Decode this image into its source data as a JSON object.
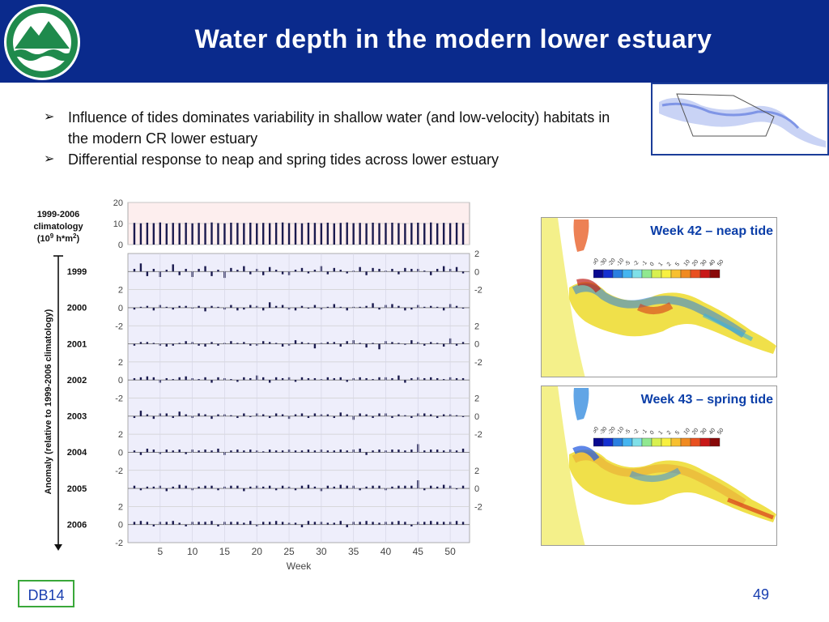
{
  "slide": {
    "title": "Water depth in the modern lower estuary",
    "bullets": [
      "Influence of tides dominates variability in shallow water (and low-velocity) habitats in the modern CR lower estuary",
      "Differential response to neap and spring tides across lower estuary"
    ],
    "footer_tag": "DB14",
    "page_number": "49"
  },
  "colors": {
    "header": "#0a2a8c",
    "bars": "#1a1a4e",
    "panel_bg": "#eeeefb",
    "clim_bg": "#fdeeee",
    "title_text": "#0b3ea8"
  },
  "maps": [
    {
      "label": "Week 42 – neap tide"
    },
    {
      "label": "Week 43 – spring tide"
    }
  ],
  "chart_data": {
    "type": "bar",
    "x": [
      1,
      2,
      3,
      4,
      5,
      6,
      7,
      8,
      9,
      10,
      11,
      12,
      13,
      14,
      15,
      16,
      17,
      18,
      19,
      20,
      21,
      22,
      23,
      24,
      25,
      26,
      27,
      28,
      29,
      30,
      31,
      32,
      33,
      34,
      35,
      36,
      37,
      38,
      39,
      40,
      41,
      42,
      43,
      44,
      45,
      46,
      47,
      48,
      49,
      50,
      51,
      52
    ],
    "xlabel": "Week",
    "xticks": [
      5,
      10,
      15,
      20,
      25,
      30,
      35,
      40,
      45,
      50
    ],
    "xlim": [
      0,
      53
    ],
    "ylabel": "Anomaly (relative to 1999-2006 climatology)",
    "climatology": {
      "label_lines": [
        "1999-2006",
        "climatology"
      ],
      "unit_base": "(10",
      "unit_exp1": "9",
      "unit_mid": " h*m",
      "unit_exp2": "2",
      "unit_end": ")",
      "ylim": [
        0,
        20
      ],
      "yticks": [
        0,
        10,
        20
      ],
      "values": [
        10.3,
        10.1,
        10.4,
        10.2,
        10.5,
        10.0,
        10.3,
        10.2,
        10.4,
        10.1,
        10.3,
        10.2,
        10.5,
        10.2,
        10.1,
        10.4,
        10.3,
        10.2,
        10.4,
        10.1,
        10.3,
        10.2,
        10.4,
        10.5,
        10.2,
        10.3,
        10.1,
        10.4,
        10.3,
        10.2,
        10.4,
        10.1,
        10.3,
        10.5,
        10.2,
        10.3,
        10.1,
        10.4,
        10.2,
        10.3,
        10.4,
        10.2,
        10.1,
        10.3,
        10.4,
        10.2,
        10.5,
        10.1,
        10.3,
        10.2,
        10.4,
        10.2
      ]
    },
    "anomaly_ylim": [
      -2,
      2
    ],
    "anomaly_yticks": [
      -2,
      0,
      2
    ],
    "series": [
      {
        "name": "1999",
        "values": [
          0.3,
          0.9,
          -0.5,
          0.3,
          -0.6,
          0.2,
          0.8,
          -0.4,
          0.3,
          -0.6,
          0.3,
          0.6,
          -0.5,
          0.2,
          -0.7,
          0.4,
          0.2,
          0.6,
          -0.3,
          0.3,
          -0.4,
          0.5,
          0.2,
          -0.3,
          -0.4,
          0.2,
          0.4,
          -0.2,
          0.2,
          0.6,
          -0.3,
          0.4,
          0.2,
          -0.2,
          0.1,
          0.5,
          -0.4,
          0.4,
          0.3,
          0.1,
          0.3,
          -0.3,
          0.4,
          0.3,
          0.3,
          0.1,
          -0.4,
          0.3,
          0.6,
          0.3,
          0.5,
          -0.2
        ]
      },
      {
        "name": "2000",
        "values": [
          -0.2,
          0.1,
          0.2,
          -0.3,
          0.3,
          0.1,
          -0.2,
          0.2,
          0.2,
          -0.1,
          0.2,
          -0.4,
          0.2,
          0.1,
          -0.2,
          0.3,
          -0.3,
          -0.2,
          0.3,
          0.2,
          -0.3,
          0.6,
          0.2,
          0.3,
          -0.2,
          -0.3,
          0.2,
          -0.1,
          0.3,
          -0.2,
          0.1,
          0.4,
          0.1,
          -0.3,
          0.1,
          0.1,
          0.2,
          0.5,
          -0.2,
          0.3,
          0.4,
          0.2,
          -0.3,
          -0.2,
          0.3,
          0.1,
          0.2,
          0.1,
          -0.3,
          0.4,
          0.2,
          -0.1
        ]
      },
      {
        "name": "2001",
        "values": [
          -0.2,
          0.2,
          0.2,
          0.1,
          -0.2,
          -0.3,
          -0.2,
          0.1,
          0.3,
          0.2,
          -0.2,
          -0.3,
          0.2,
          -0.2,
          0.1,
          0.3,
          0.1,
          0.2,
          -0.2,
          -0.2,
          0.3,
          0.2,
          0.1,
          -0.3,
          -0.2,
          0.4,
          0.2,
          0.1,
          -0.5,
          0.1,
          0.2,
          0.2,
          -0.3,
          0.3,
          0.4,
          0.1,
          -0.4,
          0.1,
          -0.6,
          0.3,
          0.2,
          0.1,
          -0.1,
          0.4,
          0.2,
          -0.2,
          0.2,
          0.1,
          -0.3,
          0.6,
          -0.2,
          0.2
        ]
      },
      {
        "name": "2002",
        "values": [
          0.2,
          0.3,
          0.4,
          0.3,
          -0.3,
          0.2,
          0.1,
          0.3,
          0.4,
          0.2,
          0.1,
          0.3,
          -0.3,
          0.3,
          0.2,
          0.1,
          -0.2,
          0.3,
          0.2,
          0.5,
          0.3,
          -0.3,
          0.3,
          0.2,
          0.3,
          -0.2,
          0.3,
          0.2,
          0.2,
          0.1,
          0.3,
          0.2,
          0.3,
          -0.2,
          0.2,
          0.3,
          0.2,
          0.1,
          0.3,
          0.3,
          0.2,
          0.5,
          -0.3,
          0.2,
          0.3,
          0.2,
          0.3,
          0.2,
          0.1,
          0.3,
          0.2,
          0.2
        ]
      },
      {
        "name": "2003",
        "values": [
          -0.2,
          0.6,
          0.2,
          -0.3,
          0.3,
          0.3,
          -0.2,
          0.5,
          0.2,
          -0.2,
          0.3,
          0.2,
          -0.3,
          0.2,
          0.2,
          0.1,
          -0.2,
          0.3,
          -0.1,
          0.3,
          0.2,
          -0.2,
          0.3,
          0.2,
          -0.3,
          0.2,
          0.3,
          -0.2,
          0.3,
          0.2,
          0.2,
          -0.2,
          0.4,
          0.2,
          -0.4,
          0.3,
          0.2,
          -0.2,
          0.3,
          0.3,
          -0.2,
          0.2,
          0.1,
          -0.2,
          0.3,
          0.3,
          0.2,
          -0.2,
          0.2,
          0.2,
          0.1,
          -0.1
        ]
      },
      {
        "name": "2004",
        "values": [
          0.2,
          -0.3,
          0.4,
          0.3,
          -0.2,
          0.3,
          0.2,
          0.3,
          -0.2,
          0.3,
          0.2,
          0.3,
          0.2,
          0.4,
          -0.3,
          0.2,
          0.3,
          0.2,
          0.3,
          0.2,
          0.1,
          0.3,
          0.2,
          0.2,
          0.3,
          0.2,
          0.2,
          0.3,
          0.2,
          0.3,
          0.2,
          0.2,
          0.3,
          0.2,
          0.3,
          0.4,
          -0.3,
          0.2,
          0.3,
          0.2,
          0.3,
          0.3,
          0.2,
          0.3,
          0.9,
          0.2,
          0.3,
          0.3,
          0.2,
          0.3,
          0.2,
          0.4
        ]
      },
      {
        "name": "2005",
        "values": [
          0.3,
          -0.2,
          0.2,
          0.2,
          0.3,
          -0.3,
          0.2,
          0.4,
          0.3,
          -0.2,
          0.2,
          0.3,
          0.3,
          -0.2,
          0.2,
          0.3,
          0.3,
          -0.3,
          0.2,
          0.3,
          0.2,
          0.3,
          -0.2,
          0.3,
          0.2,
          -0.2,
          0.3,
          0.4,
          0.2,
          -0.3,
          0.3,
          0.2,
          0.4,
          0.3,
          0.3,
          -0.2,
          0.2,
          0.3,
          0.3,
          -0.2,
          0.2,
          0.3,
          0.3,
          0.3,
          0.9,
          -0.2,
          0.3,
          0.2,
          0.4,
          0.3,
          -0.1,
          0.3
        ]
      },
      {
        "name": "2006",
        "values": [
          0.3,
          0.4,
          0.3,
          -0.2,
          0.3,
          0.3,
          0.4,
          0.2,
          -0.2,
          0.3,
          0.3,
          0.3,
          0.4,
          -0.2,
          0.3,
          0.3,
          0.3,
          0.2,
          0.4,
          -0.2,
          0.3,
          0.3,
          0.4,
          0.3,
          0.2,
          0.2,
          -0.3,
          0.4,
          0.3,
          0.3,
          0.2,
          0.2,
          0.4,
          -0.3,
          0.3,
          0.3,
          0.4,
          0.3,
          0.2,
          0.3,
          0.3,
          0.4,
          0.3,
          -0.2,
          0.3,
          0.3,
          0.4,
          0.3,
          0.3,
          0.3,
          0.4,
          0.3
        ]
      }
    ]
  }
}
